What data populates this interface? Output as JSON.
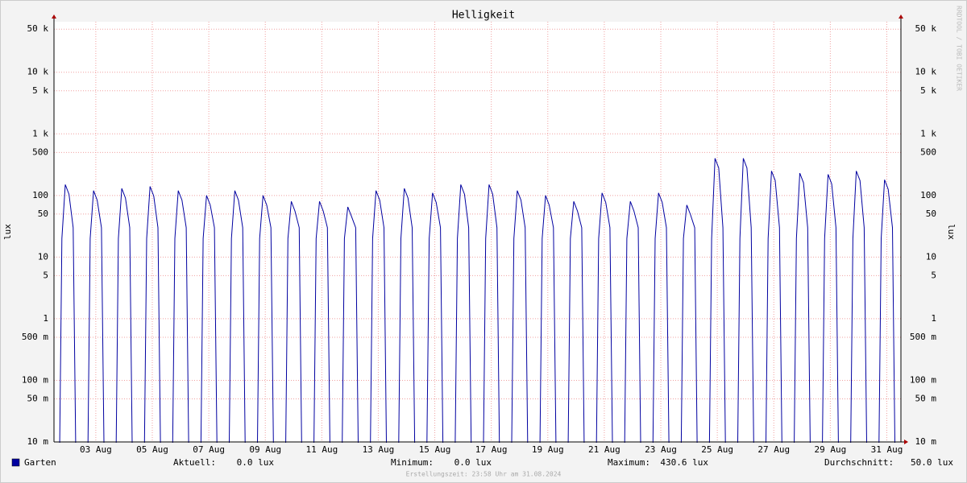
{
  "chart_data": {
    "type": "line",
    "title": "Helligkeit",
    "y_label": "lux",
    "watermark": "RRDTOOL / TOBI OETIKER",
    "footer": "Erstellungszeit: 23:58 Uhr am 31.08.2024",
    "log_scale": true,
    "grid": true,
    "xlim": [
      2.02,
      32.0
    ],
    "xticks": [
      {
        "value": 3.5,
        "label": "03 Aug"
      },
      {
        "value": 5.5,
        "label": "05 Aug"
      },
      {
        "value": 7.5,
        "label": "07 Aug"
      },
      {
        "value": 9.5,
        "label": "09 Aug"
      },
      {
        "value": 11.5,
        "label": "11 Aug"
      },
      {
        "value": 13.5,
        "label": "13 Aug"
      },
      {
        "value": 15.5,
        "label": "15 Aug"
      },
      {
        "value": 17.5,
        "label": "17 Aug"
      },
      {
        "value": 19.5,
        "label": "19 Aug"
      },
      {
        "value": 21.5,
        "label": "21 Aug"
      },
      {
        "value": 23.5,
        "label": "23 Aug"
      },
      {
        "value": 25.5,
        "label": "25 Aug"
      },
      {
        "value": 27.5,
        "label": "27 Aug"
      },
      {
        "value": 29.5,
        "label": "29 Aug"
      },
      {
        "value": 31.5,
        "label": "31 Aug"
      }
    ],
    "ylim": [
      0.01,
      66000
    ],
    "yticks": [
      {
        "value": 50000,
        "label": "50 k"
      },
      {
        "value": 10000,
        "label": "10 k"
      },
      {
        "value": 5000,
        "label": "5 k"
      },
      {
        "value": 1000,
        "label": "1 k"
      },
      500,
      100,
      50,
      10,
      5,
      1,
      {
        "value": 0.5,
        "label": "500 m"
      },
      {
        "value": 0.1,
        "label": "100 m"
      },
      {
        "value": 0.05,
        "label": "50 m"
      },
      {
        "value": 0.01,
        "label": "10 m"
      }
    ],
    "series": [
      {
        "name": "Garten",
        "color": "#0000a0",
        "x": [
          2.22,
          2.3,
          2.42,
          2.55,
          2.7,
          2.79,
          3.22,
          3.3,
          3.42,
          3.55,
          3.7,
          3.79,
          4.22,
          4.3,
          4.42,
          4.55,
          4.7,
          4.79,
          5.22,
          5.3,
          5.42,
          5.55,
          5.7,
          5.79,
          6.22,
          6.3,
          6.42,
          6.55,
          6.7,
          6.79,
          7.22,
          7.3,
          7.42,
          7.55,
          7.7,
          7.79,
          8.22,
          8.3,
          8.42,
          8.55,
          8.7,
          8.79,
          9.22,
          9.3,
          9.42,
          9.55,
          9.7,
          9.79,
          10.22,
          10.3,
          10.42,
          10.55,
          10.7,
          10.79,
          11.22,
          11.3,
          11.42,
          11.55,
          11.7,
          11.79,
          12.22,
          12.3,
          12.42,
          12.55,
          12.7,
          12.79,
          13.22,
          13.3,
          13.42,
          13.55,
          13.7,
          13.79,
          14.22,
          14.3,
          14.42,
          14.55,
          14.7,
          14.79,
          15.22,
          15.3,
          15.42,
          15.55,
          15.7,
          15.79,
          16.22,
          16.3,
          16.42,
          16.55,
          16.7,
          16.79,
          17.22,
          17.3,
          17.42,
          17.55,
          17.7,
          17.79,
          18.22,
          18.3,
          18.42,
          18.55,
          18.7,
          18.79,
          19.22,
          19.3,
          19.42,
          19.55,
          19.7,
          19.79,
          20.22,
          20.3,
          20.42,
          20.55,
          20.7,
          20.79,
          21.22,
          21.3,
          21.42,
          21.55,
          21.7,
          21.79,
          22.22,
          22.3,
          22.42,
          22.55,
          22.7,
          22.79,
          23.22,
          23.3,
          23.42,
          23.55,
          23.7,
          23.79,
          24.22,
          24.3,
          24.42,
          24.55,
          24.7,
          24.79,
          25.22,
          25.3,
          25.42,
          25.55,
          25.7,
          25.79,
          26.22,
          26.3,
          26.42,
          26.55,
          26.7,
          26.79,
          27.22,
          27.3,
          27.42,
          27.55,
          27.7,
          27.79,
          28.22,
          28.3,
          28.42,
          28.55,
          28.7,
          28.79,
          29.22,
          29.3,
          29.42,
          29.55,
          29.7,
          29.79,
          30.22,
          30.3,
          30.42,
          30.55,
          30.7,
          30.79,
          31.22,
          31.3,
          31.42,
          31.55,
          31.7,
          31.79
        ],
        "values": [
          0,
          20,
          150,
          105,
          30,
          0,
          0,
          20,
          120,
          84,
          30,
          0,
          0,
          20,
          130,
          91,
          30,
          0,
          0,
          20,
          140,
          98,
          30,
          0,
          0,
          20,
          120,
          84,
          30,
          0,
          0,
          20,
          100,
          70,
          30,
          0,
          0,
          20,
          120,
          84,
          30,
          0,
          0,
          20,
          100,
          70,
          30,
          0,
          0,
          20,
          80,
          56,
          30,
          0,
          0,
          20,
          80,
          56,
          30,
          0,
          0,
          20,
          65,
          46,
          30,
          0,
          0,
          20,
          120,
          84,
          30,
          0,
          0,
          20,
          130,
          91,
          30,
          0,
          0,
          20,
          110,
          77,
          30,
          0,
          0,
          20,
          150,
          105,
          30,
          0,
          0,
          20,
          150,
          105,
          30,
          0,
          0,
          20,
          120,
          84,
          30,
          0,
          0,
          20,
          100,
          70,
          30,
          0,
          0,
          20,
          80,
          56,
          30,
          0,
          0,
          20,
          110,
          77,
          30,
          0,
          0,
          20,
          80,
          56,
          30,
          0,
          0,
          20,
          110,
          77,
          30,
          0,
          0,
          20,
          70,
          49,
          30,
          0,
          0,
          20,
          400,
          280,
          30,
          0,
          0,
          20,
          400,
          280,
          30,
          0,
          0,
          20,
          250,
          175,
          30,
          0,
          0,
          20,
          230,
          161,
          30,
          0,
          0,
          20,
          220,
          154,
          30,
          0,
          0,
          20,
          250,
          175,
          30,
          0,
          0,
          20,
          180,
          126,
          30,
          0
        ]
      }
    ],
    "stats": [
      {
        "label": "Aktuell:",
        "value": "0.0 lux"
      },
      {
        "label": "Minimum:",
        "value": "0.0 lux"
      },
      {
        "label": "Maximum:",
        "value": "430.6 lux"
      },
      {
        "label": "Durchschnitt:",
        "value": "50.0 lux"
      }
    ]
  }
}
